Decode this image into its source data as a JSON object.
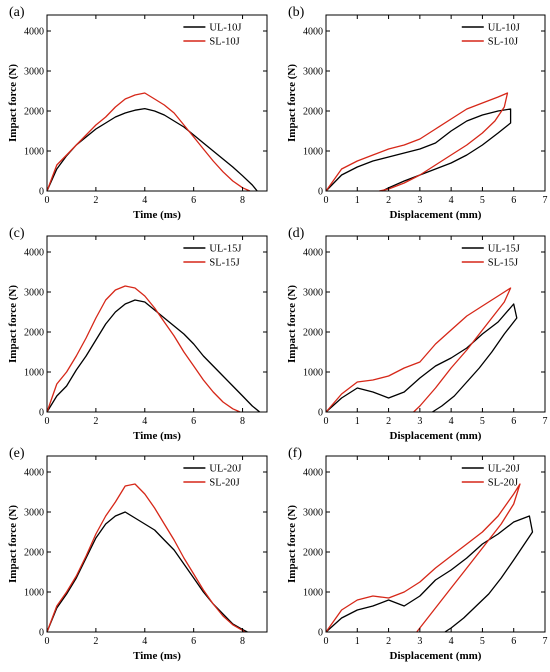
{
  "chart_data": [
    {
      "type": "line",
      "panel_label": "(a)",
      "xlabel": "Time (ms)",
      "ylabel": "Impact force (N)",
      "xlim": [
        0,
        9
      ],
      "ylim": [
        0,
        4400
      ],
      "xticks": [
        0,
        2,
        4,
        6,
        8
      ],
      "yticks": [
        0,
        1000,
        2000,
        3000,
        4000
      ],
      "legend": "top-right",
      "grid": false,
      "series": [
        {
          "name": "UL-10J",
          "color": "#000000",
          "x": [
            0,
            0.4,
            0.8,
            1.2,
            1.6,
            2.0,
            2.4,
            2.8,
            3.2,
            3.6,
            4.0,
            4.4,
            4.8,
            5.2,
            5.6,
            6.0,
            6.4,
            6.8,
            7.2,
            7.6,
            8.0,
            8.4,
            8.6
          ],
          "y": [
            0,
            550,
            880,
            1150,
            1350,
            1550,
            1700,
            1850,
            1950,
            2020,
            2060,
            2000,
            1900,
            1750,
            1600,
            1400,
            1200,
            1000,
            800,
            600,
            380,
            150,
            0
          ]
        },
        {
          "name": "SL-10J",
          "color": "#d62718",
          "x": [
            0,
            0.4,
            0.8,
            1.2,
            1.6,
            2.0,
            2.4,
            2.8,
            3.2,
            3.6,
            4.0,
            4.4,
            4.8,
            5.2,
            5.6,
            6.0,
            6.4,
            6.8,
            7.2,
            7.6,
            8.0,
            8.3
          ],
          "y": [
            0,
            650,
            900,
            1150,
            1400,
            1650,
            1850,
            2100,
            2300,
            2400,
            2450,
            2300,
            2150,
            1950,
            1650,
            1350,
            1050,
            750,
            480,
            250,
            80,
            0
          ]
        }
      ]
    },
    {
      "type": "line",
      "panel_label": "(b)",
      "xlabel": "Displacement (mm)",
      "ylabel": "Impact force (N)",
      "xlim": [
        0,
        7
      ],
      "ylim": [
        0,
        4400
      ],
      "xticks": [
        0,
        1,
        2,
        3,
        4,
        5,
        6,
        7
      ],
      "yticks": [
        0,
        1000,
        2000,
        3000,
        4000
      ],
      "legend": "top-right",
      "grid": false,
      "series": [
        {
          "name": "UL-10J",
          "color": "#000000",
          "x": [
            0,
            0.5,
            1.0,
            1.5,
            2.0,
            2.5,
            3.0,
            3.5,
            4.0,
            4.5,
            5.0,
            5.5,
            5.9,
            5.9,
            5.5,
            5.0,
            4.5,
            4.0,
            3.5,
            3.0,
            2.5,
            2.0,
            1.8
          ],
          "y": [
            0,
            400,
            600,
            750,
            850,
            950,
            1050,
            1200,
            1500,
            1750,
            1900,
            2000,
            2050,
            1700,
            1450,
            1150,
            900,
            700,
            550,
            400,
            250,
            80,
            0
          ]
        },
        {
          "name": "SL-10J",
          "color": "#d62718",
          "x": [
            0,
            0.5,
            1.0,
            1.5,
            2.0,
            2.5,
            3.0,
            3.5,
            4.0,
            4.5,
            5.0,
            5.5,
            5.8,
            5.7,
            5.4,
            5.0,
            4.5,
            4.0,
            3.5,
            3.0,
            2.5,
            2.0,
            1.7
          ],
          "y": [
            0,
            550,
            750,
            900,
            1050,
            1150,
            1300,
            1550,
            1800,
            2050,
            2200,
            2350,
            2450,
            2100,
            1750,
            1450,
            1150,
            900,
            650,
            400,
            200,
            50,
            0
          ]
        }
      ]
    },
    {
      "type": "line",
      "panel_label": "(c)",
      "xlabel": "Time (ms)",
      "ylabel": "Impact force (N)",
      "xlim": [
        0,
        9
      ],
      "ylim": [
        0,
        4400
      ],
      "xticks": [
        0,
        2,
        4,
        6,
        8
      ],
      "yticks": [
        0,
        1000,
        2000,
        3000,
        4000
      ],
      "legend": "top-right",
      "grid": false,
      "series": [
        {
          "name": "UL-15J",
          "color": "#000000",
          "x": [
            0,
            0.4,
            0.8,
            1.2,
            1.6,
            2.0,
            2.4,
            2.8,
            3.2,
            3.6,
            4.0,
            4.4,
            4.8,
            5.2,
            5.6,
            6.0,
            6.4,
            6.8,
            7.2,
            7.6,
            8.0,
            8.4,
            8.7
          ],
          "y": [
            0,
            400,
            650,
            1050,
            1400,
            1800,
            2200,
            2500,
            2700,
            2800,
            2750,
            2550,
            2350,
            2150,
            1950,
            1700,
            1400,
            1150,
            900,
            650,
            400,
            150,
            0
          ]
        },
        {
          "name": "SL-15J",
          "color": "#d62718",
          "x": [
            0,
            0.4,
            0.8,
            1.2,
            1.6,
            2.0,
            2.4,
            2.8,
            3.2,
            3.6,
            4.0,
            4.4,
            4.8,
            5.2,
            5.6,
            6.0,
            6.4,
            6.8,
            7.2,
            7.6,
            7.9
          ],
          "y": [
            0,
            700,
            1000,
            1400,
            1850,
            2350,
            2800,
            3050,
            3150,
            3100,
            2900,
            2600,
            2250,
            1900,
            1500,
            1150,
            800,
            500,
            250,
            80,
            0
          ]
        }
      ]
    },
    {
      "type": "line",
      "panel_label": "(d)",
      "xlabel": "Displacement (mm)",
      "ylabel": "Impact force (N)",
      "xlim": [
        0,
        7
      ],
      "ylim": [
        0,
        4400
      ],
      "xticks": [
        0,
        1,
        2,
        3,
        4,
        5,
        6,
        7
      ],
      "yticks": [
        0,
        1000,
        2000,
        3000,
        4000
      ],
      "legend": "top-right",
      "grid": false,
      "series": [
        {
          "name": "UL-15J",
          "color": "#000000",
          "x": [
            0,
            0.5,
            1.0,
            1.5,
            2.0,
            2.5,
            3.0,
            3.5,
            4.0,
            4.5,
            5.0,
            5.5,
            6.0,
            6.1,
            5.7,
            5.3,
            4.9,
            4.5,
            4.1,
            3.7,
            3.4
          ],
          "y": [
            0,
            350,
            600,
            500,
            350,
            500,
            850,
            1150,
            1350,
            1600,
            1950,
            2250,
            2700,
            2350,
            1950,
            1500,
            1100,
            750,
            400,
            150,
            0
          ]
        },
        {
          "name": "SL-15J",
          "color": "#d62718",
          "x": [
            0,
            0.5,
            1.0,
            1.5,
            2.0,
            2.5,
            3.0,
            3.5,
            4.0,
            4.5,
            5.0,
            5.5,
            5.9,
            5.7,
            5.3,
            4.9,
            4.5,
            4.0,
            3.5,
            3.0,
            2.8
          ],
          "y": [
            0,
            450,
            750,
            800,
            900,
            1100,
            1250,
            1700,
            2050,
            2400,
            2650,
            2900,
            3100,
            2750,
            2350,
            1950,
            1550,
            1100,
            600,
            150,
            0
          ]
        }
      ]
    },
    {
      "type": "line",
      "panel_label": "(e)",
      "xlabel": "Time (ms)",
      "ylabel": "Impact force (N)",
      "xlim": [
        0,
        9
      ],
      "ylim": [
        0,
        4400
      ],
      "xticks": [
        0,
        2,
        4,
        6,
        8
      ],
      "yticks": [
        0,
        1000,
        2000,
        3000,
        4000
      ],
      "legend": "top-right",
      "grid": false,
      "series": [
        {
          "name": "UL-20J",
          "color": "#000000",
          "x": [
            0,
            0.4,
            0.8,
            1.2,
            1.6,
            2.0,
            2.4,
            2.8,
            3.2,
            3.6,
            4.0,
            4.4,
            4.8,
            5.2,
            5.6,
            6.0,
            6.4,
            6.8,
            7.2,
            7.6,
            8.0,
            8.2
          ],
          "y": [
            0,
            600,
            950,
            1350,
            1850,
            2350,
            2700,
            2900,
            3000,
            2850,
            2700,
            2550,
            2300,
            2050,
            1700,
            1350,
            1000,
            700,
            450,
            200,
            60,
            0
          ]
        },
        {
          "name": "SL-20J",
          "color": "#d62718",
          "x": [
            0,
            0.4,
            0.8,
            1.2,
            1.6,
            2.0,
            2.4,
            2.8,
            3.2,
            3.6,
            4.0,
            4.4,
            4.8,
            5.2,
            5.6,
            6.0,
            6.4,
            6.8,
            7.2,
            7.6,
            8.0,
            8.1
          ],
          "y": [
            0,
            650,
            1000,
            1400,
            1900,
            2450,
            2900,
            3250,
            3650,
            3700,
            3450,
            3100,
            2700,
            2300,
            1850,
            1450,
            1050,
            700,
            400,
            180,
            40,
            0
          ]
        }
      ]
    },
    {
      "type": "line",
      "panel_label": "(f)",
      "xlabel": "Displacement (mm)",
      "ylabel": "Impact force (N)",
      "xlim": [
        0,
        7
      ],
      "ylim": [
        0,
        4400
      ],
      "xticks": [
        0,
        1,
        2,
        3,
        4,
        5,
        6,
        7
      ],
      "yticks": [
        0,
        1000,
        2000,
        3000,
        4000
      ],
      "legend": "top-right",
      "grid": false,
      "series": [
        {
          "name": "UL-20J",
          "color": "#000000",
          "x": [
            0,
            0.5,
            1.0,
            1.5,
            2.0,
            2.5,
            3.0,
            3.5,
            4.0,
            4.5,
            5.0,
            5.5,
            6.0,
            6.5,
            6.6,
            6.3,
            6.0,
            5.6,
            5.2,
            4.8,
            4.4,
            4.0,
            3.8
          ],
          "y": [
            0,
            350,
            550,
            650,
            800,
            650,
            900,
            1300,
            1550,
            1850,
            2200,
            2450,
            2750,
            2900,
            2500,
            2150,
            1800,
            1350,
            950,
            650,
            350,
            100,
            0
          ]
        },
        {
          "name": "SL-20J",
          "color": "#d62718",
          "x": [
            0,
            0.5,
            1.0,
            1.5,
            2.0,
            2.5,
            3.0,
            3.5,
            4.0,
            4.5,
            5.0,
            5.5,
            6.0,
            6.2,
            6.0,
            5.6,
            5.2,
            4.8,
            4.4,
            4.0,
            3.6,
            3.2,
            2.9
          ],
          "y": [
            0,
            550,
            800,
            900,
            850,
            1000,
            1250,
            1600,
            1900,
            2200,
            2500,
            2900,
            3450,
            3700,
            3200,
            2700,
            2300,
            1900,
            1500,
            1100,
            700,
            300,
            0
          ]
        }
      ]
    }
  ]
}
